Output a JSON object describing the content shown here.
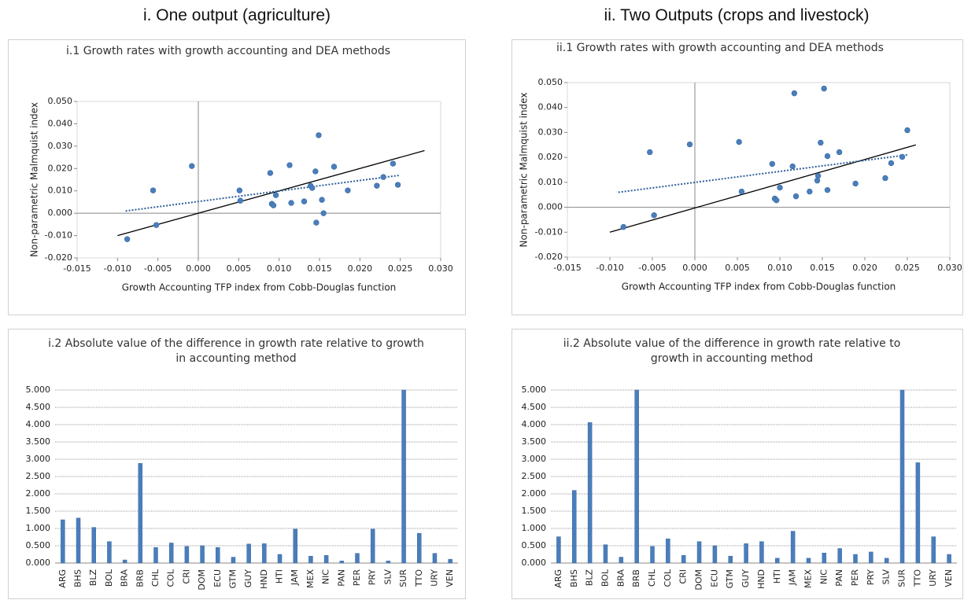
{
  "headings": [
    "i. One output (agriculture)",
    "ii. Two Outputs (crops and livestock)"
  ],
  "chart_data": [
    {
      "type": "scatter",
      "title": "i.1 Growth rates with growth accounting and DEA methods",
      "xlabel": "Growth Accounting TFP index from Cobb-Douglas function",
      "ylabel": "Non-parametric Malmquist index",
      "xlim": [
        -0.015,
        0.03
      ],
      "ylim": [
        -0.02,
        0.05
      ],
      "xticks": [
        -0.015,
        {
          "value": -0.01,
          "label": "-0.010"
        },
        -0.005,
        {
          "value": 0,
          "label": "0.000"
        },
        0.005,
        {
          "value": 0.01,
          "label": "0.010"
        },
        0.015,
        {
          "value": 0.02,
          "label": "0.020"
        },
        0.025,
        {
          "value": 0.03,
          "label": "0.030"
        }
      ],
      "yticks": [
        {
          "value": -0.02,
          "label": "-0.020"
        },
        {
          "value": -0.01,
          "label": "-0.010"
        },
        {
          "value": 0,
          "label": "0.000"
        },
        {
          "value": 0.01,
          "label": "0.010"
        },
        {
          "value": 0.02,
          "label": "0.020"
        },
        {
          "value": 0.03,
          "label": "0.030"
        },
        {
          "value": 0.04,
          "label": "0.040"
        },
        {
          "value": 0.05,
          "label": "0.050"
        }
      ],
      "series": [
        {
          "color": "#4a7ebb",
          "x": [
            -0.0088,
            -0.0056,
            -0.0052,
            -0.0008,
            0.0051,
            0.0052,
            0.0089,
            0.0091,
            0.0093,
            0.0096,
            0.0113,
            0.0115,
            0.0131,
            0.0139,
            0.0141,
            0.0145,
            0.0146,
            0.0149,
            0.0153,
            0.0155,
            0.0168,
            0.0185,
            0.0221,
            0.0229,
            0.0241,
            0.0247
          ],
          "values": [
            -0.0116,
            0.0102,
            -0.0053,
            0.0211,
            0.0102,
            0.0056,
            0.018,
            0.0042,
            0.0035,
            0.0081,
            0.0215,
            0.0046,
            0.0053,
            0.0123,
            0.0113,
            0.0187,
            -0.0042,
            0.0349,
            0.006,
            0.0,
            0.0208,
            0.0102,
            0.0123,
            0.0162,
            0.0222,
            0.0127
          ]
        }
      ],
      "lines": [
        {
          "color": "#000000",
          "style": "solid",
          "x": [
            -0.01,
            0.028
          ],
          "values": [
            -0.01,
            0.028
          ]
        },
        {
          "color": "#2f5f96",
          "style": "dotted",
          "x": [
            -0.009,
            0.025
          ],
          "values": [
            0.001,
            0.017
          ]
        }
      ]
    },
    {
      "type": "scatter",
      "title": "ii.1 Growth rates with growth accounting and DEA methods",
      "xlabel": "Growth Accounting TFP index from Cobb-Douglas function",
      "ylabel": "Non-parametric Malmquist index",
      "xlim": [
        -0.015,
        0.03
      ],
      "ylim": [
        -0.02,
        0.05
      ],
      "xticks": [
        -0.015,
        {
          "value": -0.01,
          "label": "-0.010"
        },
        -0.005,
        {
          "value": 0,
          "label": "0.000"
        },
        0.005,
        {
          "value": 0.01,
          "label": "0.010"
        },
        0.015,
        {
          "value": 0.02,
          "label": "0.020"
        },
        0.025,
        {
          "value": 0.03,
          "label": "0.030"
        }
      ],
      "yticks": [
        {
          "value": -0.02,
          "label": "-0.020"
        },
        {
          "value": -0.01,
          "label": "-0.010"
        },
        {
          "value": 0,
          "label": "0.000"
        },
        {
          "value": 0.01,
          "label": "0.010"
        },
        {
          "value": 0.02,
          "label": "0.020"
        },
        {
          "value": 0.03,
          "label": "0.030"
        },
        {
          "value": 0.04,
          "label": "0.040"
        },
        {
          "value": 0.05,
          "label": "0.050"
        }
      ],
      "series": [
        {
          "color": "#4a7ebb",
          "x": [
            -0.0084,
            -0.0053,
            -0.0048,
            -0.0006,
            0.0052,
            0.0055,
            0.0091,
            0.0094,
            0.0096,
            0.01,
            0.0117,
            0.0115,
            0.0119,
            0.0135,
            0.0144,
            0.0145,
            0.0148,
            0.0152,
            0.0156,
            0.0156,
            0.017,
            0.0189,
            0.0224,
            0.0231,
            0.0244,
            0.025
          ],
          "values": [
            -0.0079,
            0.0221,
            -0.0032,
            0.0252,
            0.0262,
            0.0063,
            0.0174,
            0.0035,
            0.0028,
            0.0079,
            0.0457,
            0.0164,
            0.0044,
            0.0063,
            0.0107,
            0.0126,
            0.0259,
            0.0476,
            0.0205,
            0.0069,
            0.0221,
            0.0095,
            0.0117,
            0.0177,
            0.0202,
            0.0309
          ]
        }
      ],
      "lines": [
        {
          "color": "#000000",
          "style": "solid",
          "x": [
            -0.01,
            0.026
          ],
          "values": [
            -0.01,
            0.025
          ]
        },
        {
          "color": "#2f5f96",
          "style": "dotted",
          "x": [
            -0.009,
            0.025
          ],
          "values": [
            0.006,
            0.021
          ]
        }
      ]
    },
    {
      "type": "bar",
      "title": "i.2 Absolute value of the difference in growth rate relative to growth in accounting method",
      "categories": [
        "ARG",
        "BHS",
        "BLZ",
        "BOL",
        "BRA",
        "BRB",
        "CHL",
        "COL",
        "CRI",
        "DOM",
        "ECU",
        "GTM",
        "GUY",
        "HND",
        "HTI",
        "JAM",
        "MEX",
        "NIC",
        "PAN",
        "PER",
        "PRY",
        "SLV",
        "SUR",
        "TTO",
        "URY",
        "VEN"
      ],
      "values": [
        1.25,
        1.3,
        1.03,
        0.62,
        0.09,
        2.88,
        0.45,
        0.58,
        0.48,
        0.5,
        0.45,
        0.17,
        0.55,
        0.56,
        0.25,
        0.98,
        0.2,
        0.22,
        0.06,
        0.28,
        0.98,
        0.06,
        5.0,
        0.86,
        0.28,
        0.11
      ],
      "color": "#4a7ebb",
      "grid": true,
      "ylim": [
        0,
        5
      ],
      "yticks": [
        {
          "value": 0,
          "label": "0.000"
        },
        {
          "value": 0.5,
          "label": "0.500"
        },
        {
          "value": 1,
          "label": "1.000"
        },
        {
          "value": 1.5,
          "label": "1.500"
        },
        {
          "value": 2,
          "label": "2.000"
        },
        {
          "value": 2.5,
          "label": "2.500"
        },
        {
          "value": 3,
          "label": "3.000"
        },
        {
          "value": 3.5,
          "label": "3.500"
        },
        {
          "value": 4,
          "label": "4.000"
        },
        {
          "value": 4.5,
          "label": "4.500"
        },
        {
          "value": 5,
          "label": "5.000"
        }
      ]
    },
    {
      "type": "bar",
      "title": "ii.2 Absolute value of the difference in growth rate relative to growth in accounting method",
      "categories": [
        "ARG",
        "BHS",
        "BLZ",
        "BOL",
        "BRA",
        "BRB",
        "CHL",
        "COL",
        "CRI",
        "DOM",
        "ECU",
        "GTM",
        "GUY",
        "HND",
        "HTI",
        "JAM",
        "MEX",
        "NIC",
        "PAN",
        "PER",
        "PRY",
        "SLV",
        "SUR",
        "TTO",
        "URY",
        "VEN"
      ],
      "values": [
        0.76,
        2.1,
        4.06,
        0.53,
        0.17,
        5.0,
        0.48,
        0.7,
        0.22,
        0.62,
        0.5,
        0.2,
        0.56,
        0.62,
        0.14,
        0.92,
        0.14,
        0.29,
        0.42,
        0.25,
        0.32,
        0.14,
        5.0,
        2.9,
        0.76,
        0.25
      ],
      "color": "#4a7ebb",
      "grid": true,
      "ylim": [
        0,
        5
      ],
      "yticks": [
        {
          "value": 0,
          "label": "0.000"
        },
        {
          "value": 0.5,
          "label": "0.500"
        },
        {
          "value": 1,
          "label": "1.000"
        },
        {
          "value": 1.5,
          "label": "1.500"
        },
        {
          "value": 2,
          "label": "2.000"
        },
        {
          "value": 2.5,
          "label": "2.500"
        },
        {
          "value": 3,
          "label": "3.000"
        },
        {
          "value": 3.5,
          "label": "3.500"
        },
        {
          "value": 4,
          "label": "4.000"
        },
        {
          "value": 4.5,
          "label": "4.500"
        },
        {
          "value": 5,
          "label": "5.000"
        }
      ]
    }
  ]
}
